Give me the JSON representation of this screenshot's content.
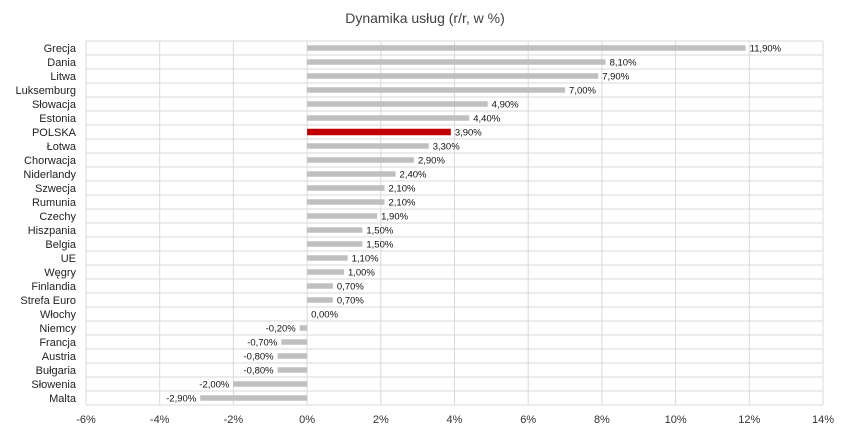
{
  "chart_data": {
    "type": "bar",
    "orientation": "horizontal",
    "title": "Dynamika usług (r/r, w %)",
    "xlabel": "",
    "ylabel": "",
    "xlim": [
      -6,
      14
    ],
    "x_ticks": [
      -6,
      -4,
      -2,
      0,
      2,
      4,
      6,
      8,
      10,
      12,
      14
    ],
    "x_tick_labels": [
      "-6%",
      "-4%",
      "-2%",
      "0%",
      "2%",
      "4%",
      "6%",
      "8%",
      "10%",
      "12%",
      "14%"
    ],
    "grid": true,
    "legend": "none",
    "categories": [
      "Grecja",
      "Dania",
      "Litwa",
      "Luksemburg",
      "Słowacja",
      "Estonia",
      "POLSKA",
      "Łotwa",
      "Chorwacja",
      "Niderlandy",
      "Szwecja",
      "Rumunia",
      "Czechy",
      "Hiszpania",
      "Belgia",
      "UE",
      "Węgry",
      "Finlandia",
      "Strefa Euro",
      "Włochy",
      "Niemcy",
      "Francja",
      "Austria",
      "Bułgaria",
      "Słowenia",
      "Malta"
    ],
    "values": [
      11.9,
      8.1,
      7.9,
      7.0,
      4.9,
      4.4,
      3.9,
      3.3,
      2.9,
      2.4,
      2.1,
      2.1,
      1.9,
      1.5,
      1.5,
      1.1,
      1.0,
      0.7,
      0.7,
      0.0,
      -0.2,
      -0.7,
      -0.8,
      -0.8,
      -2.0,
      -2.9
    ],
    "data_labels": [
      "11,90%",
      "8,10%",
      "7,90%",
      "7,00%",
      "4,90%",
      "4,40%",
      "3,90%",
      "3,30%",
      "2,90%",
      "2,40%",
      "2,10%",
      "2,10%",
      "1,90%",
      "1,50%",
      "1,50%",
      "1,10%",
      "1,00%",
      "0,70%",
      "0,70%",
      "0,00%",
      "-0,20%",
      "-0,70%",
      "-0,80%",
      "-0,80%",
      "-2,00%",
      "-2,90%"
    ],
    "highlight_category": "POLSKA",
    "colors": {
      "bar": "#bfbfbf",
      "highlight": "#c00000",
      "grid": "#d9d9d9"
    }
  }
}
